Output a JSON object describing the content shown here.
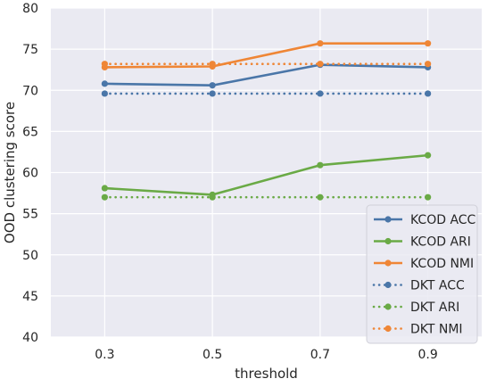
{
  "chart_data": {
    "type": "line",
    "title": "",
    "xlabel": "threshold",
    "ylabel": "OOD clustering score",
    "x": [
      0.3,
      0.5,
      0.7,
      0.9
    ],
    "x_tick_labels": [
      "0.3",
      "0.5",
      "0.7",
      "0.9"
    ],
    "ylim": [
      40,
      80
    ],
    "yticks": [
      40,
      45,
      50,
      55,
      60,
      65,
      70,
      75,
      80
    ],
    "grid": true,
    "legend_position": "lower-right",
    "series": [
      {
        "name": "KCOD ACC",
        "values": [
          70.8,
          70.6,
          73.1,
          72.8
        ],
        "color": "#4a76a8",
        "style": "solid"
      },
      {
        "name": "KCOD ARI",
        "values": [
          58.1,
          57.3,
          60.9,
          62.1
        ],
        "color": "#6aaa46",
        "style": "solid"
      },
      {
        "name": "KCOD NMI",
        "values": [
          72.8,
          72.9,
          75.7,
          75.7
        ],
        "color": "#ef8636",
        "style": "solid"
      },
      {
        "name": "DKT ACC",
        "values": [
          69.6,
          69.6,
          69.6,
          69.6
        ],
        "color": "#4a76a8",
        "style": "dotted"
      },
      {
        "name": "DKT ARI",
        "values": [
          57.0,
          57.0,
          57.0,
          57.0
        ],
        "color": "#6aaa46",
        "style": "dotted"
      },
      {
        "name": "DKT NMI",
        "values": [
          73.2,
          73.2,
          73.2,
          73.2
        ],
        "color": "#ef8636",
        "style": "dotted"
      }
    ]
  }
}
